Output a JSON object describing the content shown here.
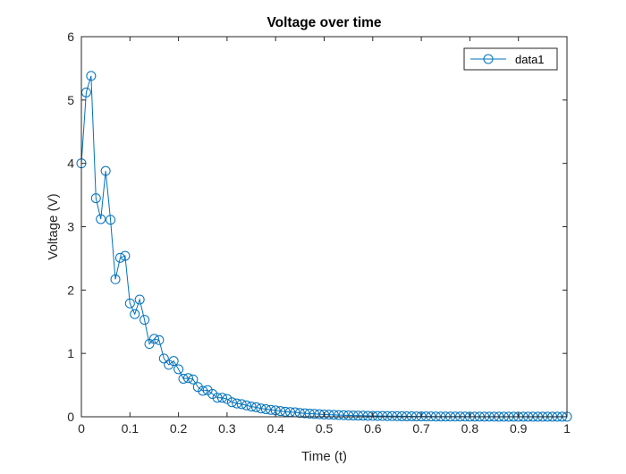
{
  "chart_data": {
    "type": "line",
    "title": "Voltage over time",
    "xlabel": "Time (t)",
    "ylabel": "Voltage (V)",
    "xlim": [
      0,
      1
    ],
    "ylim": [
      0,
      6
    ],
    "xticks": [
      0,
      0.1,
      0.2,
      0.3,
      0.4,
      0.5,
      0.6,
      0.7,
      0.8,
      0.9,
      1
    ],
    "xtick_labels": [
      "0",
      "0.1",
      "0.2",
      "0.3",
      "0.4",
      "0.5",
      "0.6",
      "0.7",
      "0.8",
      "0.9",
      "1"
    ],
    "yticks": [
      0,
      1,
      2,
      3,
      4,
      5,
      6
    ],
    "ytick_labels": [
      "0",
      "1",
      "2",
      "3",
      "4",
      "5",
      "6"
    ],
    "grid": false,
    "legend_position": "top-right",
    "marker": "circle",
    "series": [
      {
        "name": "data1",
        "color": "#0072BD",
        "x": [
          0,
          0.01,
          0.02,
          0.03,
          0.04,
          0.05,
          0.06,
          0.07,
          0.08,
          0.09,
          0.1,
          0.11,
          0.12,
          0.13,
          0.14,
          0.15,
          0.16,
          0.17,
          0.18,
          0.19,
          0.2,
          0.21,
          0.22,
          0.23,
          0.24,
          0.25,
          0.26,
          0.27,
          0.28,
          0.29,
          0.3,
          0.31,
          0.32,
          0.33,
          0.34,
          0.35,
          0.36,
          0.37,
          0.38,
          0.39,
          0.4,
          0.41,
          0.42,
          0.43,
          0.44,
          0.45,
          0.46,
          0.47,
          0.48,
          0.49,
          0.5,
          0.51,
          0.52,
          0.53,
          0.54,
          0.55,
          0.56,
          0.57,
          0.58,
          0.59,
          0.6,
          0.61,
          0.62,
          0.63,
          0.64,
          0.65,
          0.66,
          0.67,
          0.68,
          0.69,
          0.7,
          0.71,
          0.72,
          0.73,
          0.74,
          0.75,
          0.76,
          0.77,
          0.78,
          0.79,
          0.8,
          0.81,
          0.82,
          0.83,
          0.84,
          0.85,
          0.86,
          0.87,
          0.88,
          0.89,
          0.9,
          0.91,
          0.92,
          0.93,
          0.94,
          0.95,
          0.96,
          0.97,
          0.98,
          0.99,
          1.0
        ],
        "values": [
          4.0,
          5.12,
          5.38,
          3.45,
          3.12,
          3.88,
          3.11,
          2.17,
          2.51,
          2.54,
          1.79,
          1.62,
          1.85,
          1.53,
          1.15,
          1.23,
          1.21,
          0.92,
          0.82,
          0.88,
          0.75,
          0.6,
          0.61,
          0.59,
          0.47,
          0.41,
          0.42,
          0.36,
          0.3,
          0.3,
          0.28,
          0.23,
          0.21,
          0.2,
          0.18,
          0.16,
          0.15,
          0.13,
          0.12,
          0.11,
          0.1,
          0.09,
          0.08,
          0.075,
          0.07,
          0.06,
          0.055,
          0.05,
          0.045,
          0.04,
          0.036,
          0.033,
          0.03,
          0.027,
          0.025,
          0.022,
          0.02,
          0.018,
          0.017,
          0.015,
          0.014,
          0.013,
          0.012,
          0.011,
          0.01,
          0.009,
          0.008,
          0.007,
          0.007,
          0.006,
          0.006,
          0.005,
          0.005,
          0.004,
          0.004,
          0.004,
          0.003,
          0.003,
          0.003,
          0.003,
          0.002,
          0.002,
          0.002,
          0.002,
          0.002,
          0.002,
          0.001,
          0.001,
          0.001,
          0.001,
          0.001,
          0.001,
          0.001,
          0.001,
          0.001,
          0.001,
          0.001,
          0.001,
          0.001,
          0.001,
          0.001
        ]
      }
    ]
  }
}
